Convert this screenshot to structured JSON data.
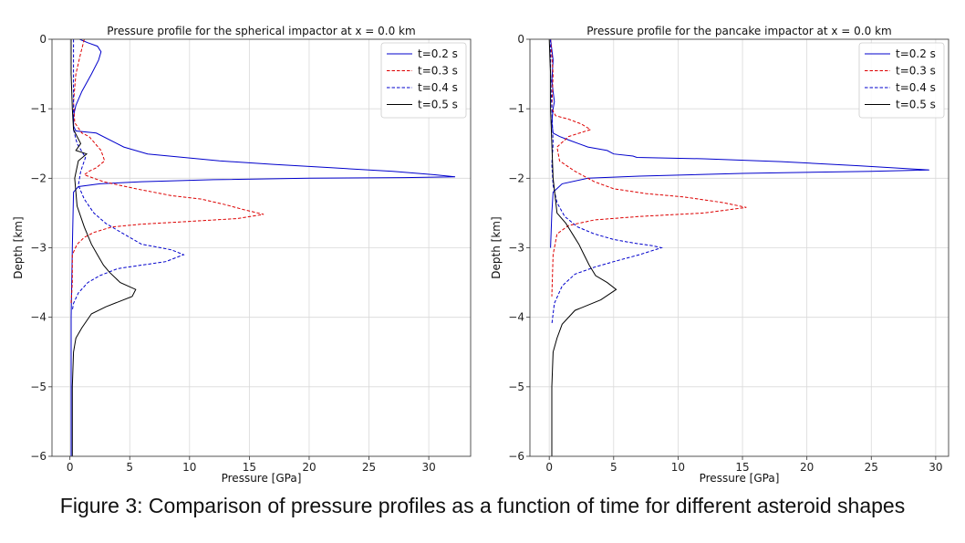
{
  "caption": "Figure 3: Comparison of pressure profiles as a function of time for different asteroid shapes",
  "colors": {
    "t02": "#0000cc",
    "t03": "#dd0000",
    "t04": "#0000cc",
    "t05": "#000000"
  },
  "chart_data": [
    {
      "type": "line",
      "title": "Pressure profile for the spherical impactor at x = 0.0 km",
      "xlabel": "Pressure [GPa]",
      "ylabel": "Depth [km]",
      "xlim": [
        -1.5,
        33.5
      ],
      "ylim": [
        -6,
        0
      ],
      "xticks": [
        0,
        5,
        10,
        15,
        20,
        25,
        30
      ],
      "yticks": [
        0,
        -1,
        -2,
        -3,
        -4,
        -5,
        -6
      ],
      "grid": true,
      "legend": "top-right",
      "series": [
        {
          "name": "t=0.2 s",
          "style": "solid",
          "color": "#0000cc",
          "x": [
            0.8,
            1.5,
            2.3,
            2.6,
            2.4,
            1.8,
            1.0,
            0.5,
            0.3,
            0.3,
            0.5,
            2.2,
            4.5,
            6.5,
            9.5,
            12.5,
            17,
            22,
            27,
            30.5,
            32.2,
            28,
            20,
            12,
            6,
            2.5,
            0.7,
            0.3,
            0.2,
            0.1,
            0.1,
            0.1,
            0.1
          ],
          "y": [
            0,
            -0.05,
            -0.1,
            -0.18,
            -0.3,
            -0.5,
            -0.75,
            -0.95,
            -1.1,
            -1.25,
            -1.32,
            -1.35,
            -1.55,
            -1.65,
            -1.7,
            -1.75,
            -1.8,
            -1.85,
            -1.9,
            -1.95,
            -1.98,
            -1.99,
            -2.0,
            -2.02,
            -2.05,
            -2.08,
            -2.12,
            -2.2,
            -3.0,
            -4.0,
            -4.5,
            -5.0,
            -6.0
          ]
        },
        {
          "name": "t=0.3 s",
          "style": "dashed",
          "color": "#dd0000",
          "x": [
            1.2,
            0.9,
            0.5,
            0.3,
            0.4,
            1.0,
            1.6,
            2.6,
            2.9,
            2.2,
            1.6,
            1.2,
            2.8,
            5.5,
            8.5,
            11,
            13,
            14.5,
            16.2,
            14,
            10,
            6,
            3.5,
            2.0,
            1.2,
            0.6,
            0.2,
            0.2,
            0.1
          ],
          "y": [
            0,
            -0.2,
            -0.5,
            -0.9,
            -1.2,
            -1.35,
            -1.4,
            -1.6,
            -1.75,
            -1.85,
            -1.9,
            -1.95,
            -2.05,
            -2.15,
            -2.25,
            -2.3,
            -2.38,
            -2.45,
            -2.52,
            -2.58,
            -2.62,
            -2.66,
            -2.7,
            -2.78,
            -2.85,
            -2.95,
            -3.1,
            -3.5,
            -3.8
          ]
        },
        {
          "name": "t=0.4 s",
          "style": "dashed",
          "color": "#0000cc",
          "x": [
            0.3,
            0.3,
            0.3,
            0.3,
            0.6,
            1.3,
            0.9,
            0.7,
            1.2,
            2.0,
            3.0,
            4.0,
            5.0,
            6.0,
            7.0,
            8.5,
            9.5,
            8.0,
            6.0,
            4.0,
            2.5,
            1.5,
            0.7,
            0.3,
            0.2
          ],
          "y": [
            0,
            -0.5,
            -1.0,
            -1.3,
            -1.5,
            -1.7,
            -1.9,
            -2.1,
            -2.3,
            -2.5,
            -2.65,
            -2.75,
            -2.85,
            -2.95,
            -2.98,
            -3.03,
            -3.1,
            -3.2,
            -3.25,
            -3.3,
            -3.4,
            -3.5,
            -3.65,
            -3.8,
            -3.9
          ]
        },
        {
          "name": "t=0.5 s",
          "style": "solid",
          "color": "#000000",
          "x": [
            0.1,
            0.1,
            0.2,
            0.3,
            0.6,
            0.9,
            0.5,
            1.4,
            0.7,
            0.4,
            0.6,
            1.2,
            1.8,
            2.3,
            2.8,
            3.3,
            4.2,
            5.5,
            5.2,
            3.0,
            1.8,
            1.0,
            0.5,
            0.3,
            0.2,
            0.2,
            0.2
          ],
          "y": [
            0,
            -0.5,
            -1.0,
            -1.3,
            -1.4,
            -1.5,
            -1.6,
            -1.65,
            -1.75,
            -2.0,
            -2.4,
            -2.7,
            -2.95,
            -3.1,
            -3.25,
            -3.35,
            -3.5,
            -3.6,
            -3.7,
            -3.85,
            -3.95,
            -4.15,
            -4.3,
            -4.5,
            -5.0,
            -5.5,
            -6.0
          ]
        }
      ]
    },
    {
      "type": "line",
      "title": "Pressure profile for the pancake impactor at x = 0.0 km",
      "xlabel": "Pressure [GPa]",
      "ylabel": "Depth [km]",
      "xlim": [
        -1.5,
        31.0
      ],
      "ylim": [
        -6,
        0
      ],
      "xticks": [
        0,
        5,
        10,
        15,
        20,
        25,
        30
      ],
      "yticks": [
        0,
        -1,
        -2,
        -3,
        -4,
        -5,
        -6
      ],
      "grid": true,
      "legend": "top-right",
      "series": [
        {
          "name": "t=0.2 s",
          "style": "solid",
          "color": "#0000cc",
          "x": [
            0.1,
            0.3,
            0.2,
            0.4,
            0.3,
            0.2,
            0.3,
            0.8,
            1.5,
            3.0,
            4.5,
            5.0,
            6.5,
            6.8,
            12,
            18,
            24,
            29.5,
            25,
            15,
            7,
            3,
            1.0,
            0.3,
            0.2,
            0.1
          ],
          "y": [
            0,
            -0.3,
            -0.6,
            -0.9,
            -1.0,
            -1.2,
            -1.35,
            -1.4,
            -1.45,
            -1.55,
            -1.6,
            -1.65,
            -1.68,
            -1.7,
            -1.72,
            -1.76,
            -1.82,
            -1.88,
            -1.9,
            -1.93,
            -1.97,
            -2.0,
            -2.08,
            -2.2,
            -2.5,
            -3.0
          ]
        },
        {
          "name": "t=0.3 s",
          "style": "dashed",
          "color": "#dd0000",
          "x": [
            0.1,
            0.3,
            0.2,
            0.5,
            1.5,
            2.5,
            3.2,
            1.5,
            0.6,
            0.8,
            2.0,
            3.5,
            5.0,
            7.5,
            10.5,
            13.5,
            15.3,
            12,
            7,
            3.5,
            1.5,
            0.6,
            0.3,
            0.2
          ],
          "y": [
            0,
            -0.5,
            -1.0,
            -1.1,
            -1.15,
            -1.22,
            -1.3,
            -1.4,
            -1.55,
            -1.75,
            -1.9,
            -2.05,
            -2.15,
            -2.22,
            -2.27,
            -2.35,
            -2.42,
            -2.5,
            -2.55,
            -2.6,
            -2.68,
            -2.8,
            -3.1,
            -3.7
          ]
        },
        {
          "name": "t=0.4 s",
          "style": "dashed",
          "color": "#0000cc",
          "x": [
            0.1,
            0.1,
            0.2,
            0.3,
            0.2,
            0.3,
            0.6,
            1.2,
            2.2,
            3.5,
            5.0,
            6.5,
            8.0,
            8.7,
            7.0,
            5.0,
            3.5,
            2.0,
            1.0,
            0.4,
            0.2
          ],
          "y": [
            0,
            -0.5,
            -1.0,
            -1.5,
            -1.8,
            -2.1,
            -2.35,
            -2.55,
            -2.7,
            -2.8,
            -2.88,
            -2.93,
            -2.97,
            -3.0,
            -3.1,
            -3.2,
            -3.28,
            -3.38,
            -3.55,
            -3.8,
            -4.1
          ]
        },
        {
          "name": "t=0.5 s",
          "style": "solid",
          "color": "#000000",
          "x": [
            0.0,
            0.1,
            0.1,
            0.2,
            0.3,
            0.6,
            1.3,
            1.8,
            2.3,
            2.7,
            3.1,
            3.6,
            4.5,
            5.2,
            4.0,
            2.0,
            1.0,
            0.6,
            0.3,
            0.2,
            0.2,
            0.2
          ],
          "y": [
            0,
            -0.5,
            -1.0,
            -1.5,
            -2.0,
            -2.5,
            -2.65,
            -2.8,
            -2.95,
            -3.1,
            -3.25,
            -3.4,
            -3.5,
            -3.6,
            -3.75,
            -3.9,
            -4.1,
            -4.3,
            -4.5,
            -5.0,
            -5.5,
            -6.0
          ]
        }
      ]
    }
  ]
}
